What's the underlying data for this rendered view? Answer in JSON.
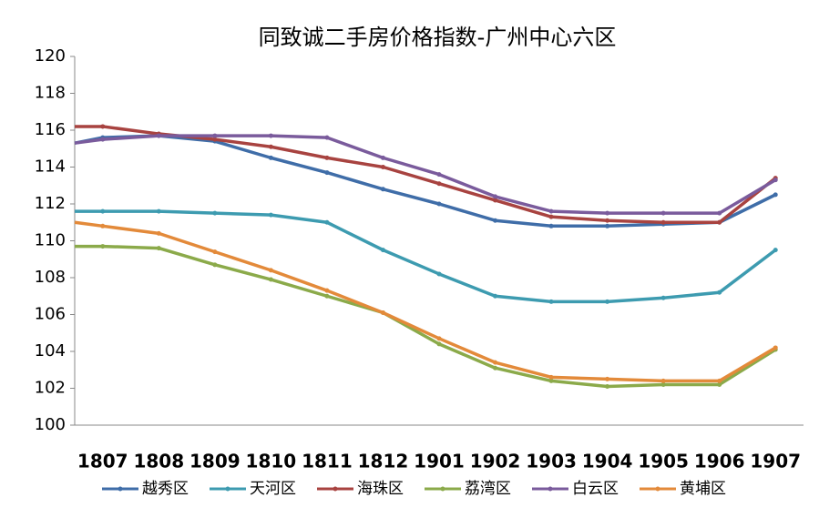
{
  "chart_data": {
    "type": "line",
    "title": "同致诚二手房价格指数-广州中心六区",
    "categories": [
      null,
      "1807",
      "1808",
      "1809",
      "1810",
      "1811",
      "1812",
      "1901",
      "1902",
      "1903",
      "1904",
      "1905",
      "1906",
      "1907"
    ],
    "series": [
      {
        "name": "越秀区",
        "color": "#3f6da8",
        "values": [
          115.3,
          115.6,
          115.7,
          115.4,
          114.5,
          113.7,
          112.8,
          112.0,
          111.1,
          110.8,
          110.8,
          110.9,
          111.0,
          112.5
        ]
      },
      {
        "name": "天河区",
        "color": "#3d9bb0",
        "values": [
          111.6,
          111.6,
          111.6,
          111.5,
          111.4,
          111.0,
          109.5,
          108.2,
          107.0,
          106.7,
          106.7,
          106.9,
          107.2,
          109.5
        ]
      },
      {
        "name": "海珠区",
        "color": "#a84340",
        "values": [
          116.2,
          116.2,
          115.8,
          115.5,
          115.1,
          114.5,
          114.0,
          113.1,
          112.2,
          111.3,
          111.1,
          111.0,
          111.0,
          113.4
        ]
      },
      {
        "name": "荔湾区",
        "color": "#8baa4a",
        "values": [
          109.7,
          109.7,
          109.6,
          108.7,
          107.9,
          107.0,
          106.1,
          104.4,
          103.1,
          102.4,
          102.1,
          102.2,
          102.2,
          104.1
        ]
      },
      {
        "name": "白云区",
        "color": "#7a5b9c",
        "values": [
          115.3,
          115.5,
          115.7,
          115.7,
          115.7,
          115.6,
          114.5,
          113.6,
          112.4,
          111.6,
          111.5,
          111.5,
          111.5,
          113.3
        ]
      },
      {
        "name": "黄埔区",
        "color": "#e38a3a",
        "values": [
          111.0,
          110.8,
          110.4,
          109.4,
          108.4,
          107.3,
          106.1,
          104.7,
          103.4,
          102.6,
          102.5,
          102.4,
          102.4,
          104.2
        ]
      }
    ],
    "ylim": [
      100,
      120
    ],
    "yticks": [
      100,
      102,
      104,
      106,
      108,
      110,
      112,
      114,
      116,
      118,
      120
    ],
    "grid": false,
    "legend": "bottom"
  }
}
